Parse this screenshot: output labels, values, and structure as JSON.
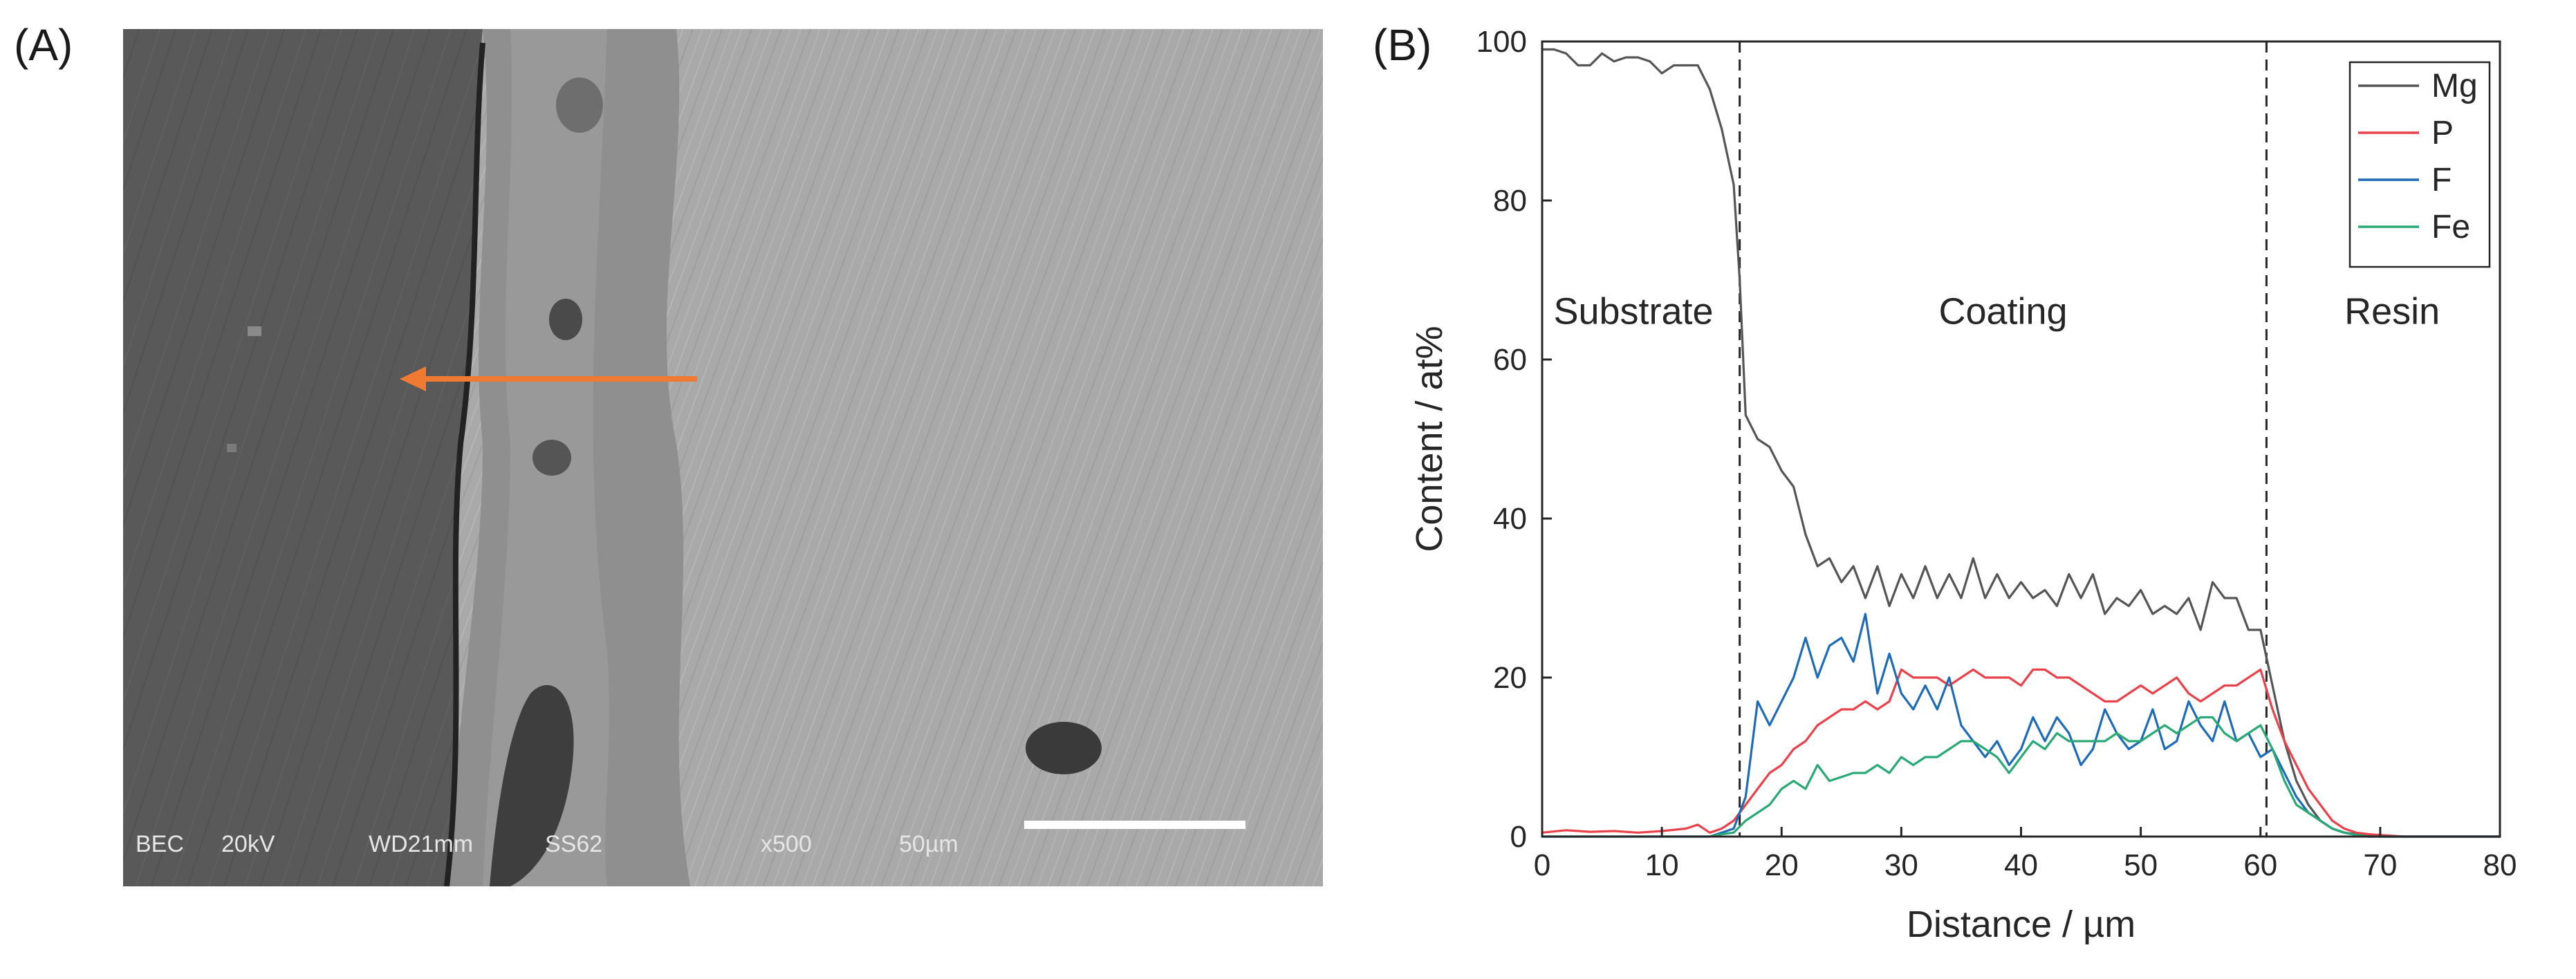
{
  "panels": {
    "a_label": "(A)",
    "b_label": "(B)"
  },
  "sem_image": {
    "info_bar": {
      "mode": "BEC",
      "voltage": "20kV",
      "working_distance": "WD21mm",
      "spot": "SS62",
      "magnification": "x500",
      "scale": "50µm"
    },
    "arrow_color": "#f07a32"
  },
  "chart_data": {
    "type": "line",
    "xlabel": "Distance / µm",
    "ylabel": "Content / at%",
    "xlim": [
      0,
      80
    ],
    "ylim": [
      0,
      100
    ],
    "xticks": [
      0,
      10,
      20,
      30,
      40,
      50,
      60,
      70,
      80
    ],
    "yticks": [
      0,
      20,
      40,
      60,
      80,
      100
    ],
    "grid": false,
    "legend_position": "top-right",
    "region_boundaries": [
      16.5,
      60.5
    ],
    "region_labels": [
      "Substrate",
      "Coating",
      "Resin"
    ],
    "region_label_x": [
      0.95,
      38.5,
      71.0
    ],
    "region_label_y": 64.5,
    "series": [
      {
        "name": "Mg",
        "color": "#555555",
        "x": [
          0,
          1,
          2,
          3,
          4,
          5,
          6,
          7,
          8,
          9,
          10,
          11,
          12,
          13,
          14,
          15,
          16,
          16.5,
          17,
          18,
          19,
          20,
          21,
          22,
          23,
          24,
          25,
          26,
          27,
          28,
          29,
          30,
          31,
          32,
          33,
          34,
          35,
          36,
          37,
          38,
          39,
          40,
          41,
          42,
          43,
          44,
          45,
          46,
          47,
          48,
          49,
          50,
          51,
          52,
          53,
          54,
          55,
          56,
          57,
          58,
          59,
          60,
          61,
          62,
          63,
          64,
          65,
          66,
          67,
          68,
          69,
          70,
          72,
          75,
          80
        ],
        "y": [
          99,
          99,
          98.5,
          97,
          97,
          98.5,
          97.5,
          98,
          98,
          97.5,
          96,
          97,
          97,
          97,
          94,
          89,
          82,
          70,
          53,
          50,
          49,
          46,
          44,
          38,
          34,
          35,
          32,
          34,
          30,
          34,
          29,
          33,
          30,
          34,
          30,
          33,
          30,
          35,
          30,
          33,
          30,
          32,
          30,
          31,
          29,
          33,
          30,
          33,
          28,
          30,
          29,
          31,
          28,
          29,
          28,
          30,
          26,
          32,
          30,
          30,
          26,
          26,
          19,
          12,
          7,
          4,
          2,
          1,
          0.5,
          0.3,
          0.2,
          0,
          0,
          0,
          0
        ]
      },
      {
        "name": "P",
        "color": "#e8424b",
        "x": [
          0,
          2,
          4,
          6,
          8,
          10,
          12,
          13,
          14,
          15,
          16,
          17,
          18,
          19,
          20,
          21,
          22,
          23,
          24,
          25,
          26,
          27,
          28,
          29,
          30,
          31,
          32,
          33,
          34,
          35,
          36,
          37,
          38,
          39,
          40,
          41,
          42,
          43,
          44,
          45,
          46,
          47,
          48,
          49,
          50,
          51,
          52,
          53,
          54,
          55,
          56,
          57,
          58,
          59,
          60,
          61,
          62,
          63,
          64,
          65,
          66,
          67,
          68,
          69,
          70,
          72,
          75,
          80
        ],
        "y": [
          0.5,
          0.8,
          0.6,
          0.7,
          0.5,
          0.7,
          1,
          1.5,
          0.5,
          1,
          2,
          4,
          6,
          8,
          9,
          11,
          12,
          14,
          15,
          16,
          16,
          17,
          16,
          17,
          21,
          20,
          20,
          20,
          19,
          20,
          21,
          20,
          20,
          20,
          19,
          21,
          21,
          20,
          20,
          19,
          18,
          17,
          17,
          18,
          19,
          18,
          19,
          20,
          18,
          17,
          18,
          19,
          19,
          20,
          21,
          16,
          12,
          9,
          6,
          4,
          2,
          1,
          0.5,
          0.3,
          0.2,
          0,
          0,
          0
        ]
      },
      {
        "name": "F",
        "color": "#1f6bb5",
        "x": [
          0,
          5,
          10,
          14,
          15,
          16,
          17,
          18,
          19,
          20,
          21,
          22,
          23,
          24,
          25,
          26,
          27,
          28,
          29,
          30,
          31,
          32,
          33,
          34,
          35,
          36,
          37,
          38,
          39,
          40,
          41,
          42,
          43,
          44,
          45,
          46,
          47,
          48,
          49,
          50,
          51,
          52,
          53,
          54,
          55,
          56,
          57,
          58,
          59,
          60,
          61,
          62,
          63,
          64,
          65,
          66,
          67,
          68,
          69,
          70,
          72,
          75,
          80
        ],
        "y": [
          0,
          0,
          0,
          0,
          0.5,
          1,
          5,
          17,
          14,
          17,
          20,
          25,
          20,
          24,
          25,
          22,
          28,
          18,
          23,
          18,
          16,
          19,
          16,
          20,
          14,
          12,
          10,
          12,
          9,
          11,
          15,
          12,
          15,
          13,
          9,
          11,
          16,
          13,
          11,
          12,
          16,
          11,
          12,
          17,
          14,
          12,
          17,
          12,
          13,
          10,
          11,
          8,
          5,
          3,
          2,
          1,
          0.5,
          0.2,
          0,
          0,
          0,
          0,
          0
        ]
      },
      {
        "name": "Fe",
        "color": "#2aa876",
        "x": [
          0,
          5,
          10,
          14,
          15,
          16,
          17,
          18,
          19,
          20,
          21,
          22,
          23,
          24,
          25,
          26,
          27,
          28,
          29,
          30,
          31,
          32,
          33,
          34,
          35,
          36,
          37,
          38,
          39,
          40,
          41,
          42,
          43,
          44,
          45,
          46,
          47,
          48,
          49,
          50,
          51,
          52,
          53,
          54,
          55,
          56,
          57,
          58,
          59,
          60,
          61,
          62,
          63,
          64,
          65,
          66,
          67,
          68,
          69,
          70,
          72,
          75,
          80
        ],
        "y": [
          0,
          0,
          0,
          0,
          0.3,
          0.5,
          2,
          3,
          4,
          6,
          7,
          6,
          9,
          7,
          7.5,
          8,
          8,
          9,
          8,
          10,
          9,
          10,
          10,
          11,
          12,
          12,
          11,
          10,
          8,
          10,
          12,
          11,
          13,
          12,
          12,
          12,
          12,
          13,
          12,
          12,
          13,
          14,
          13,
          14,
          15,
          15,
          13,
          12,
          13,
          14,
          11,
          7,
          4,
          3,
          2,
          1,
          0.5,
          0.2,
          0,
          0,
          0,
          0,
          0
        ]
      }
    ]
  }
}
